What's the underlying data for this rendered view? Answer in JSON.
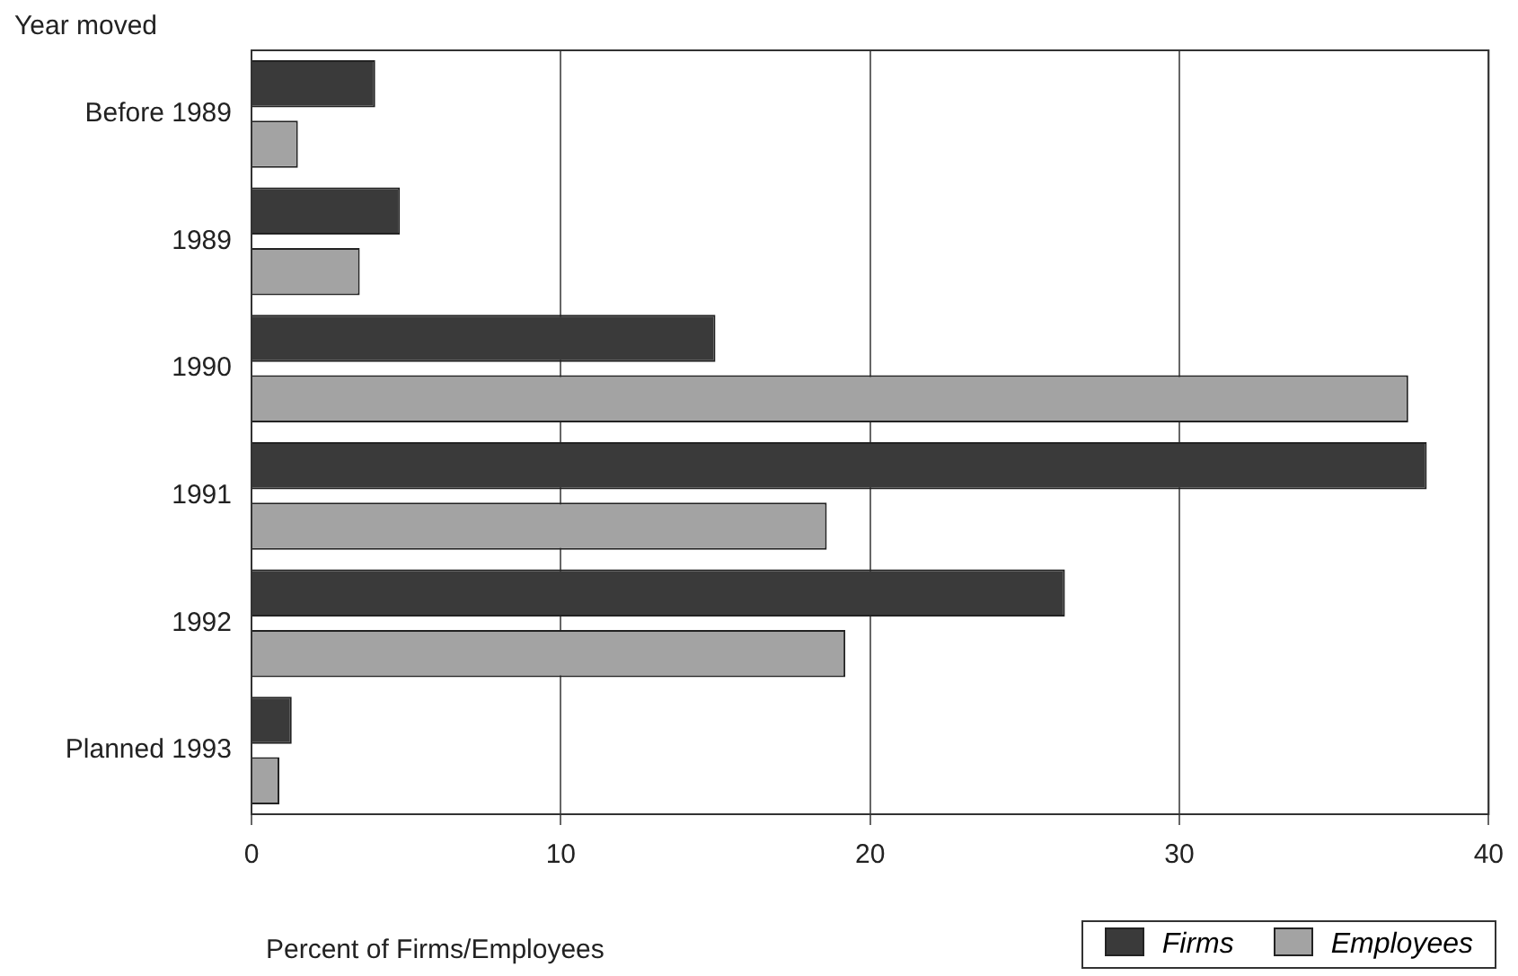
{
  "chart_data": {
    "type": "bar",
    "orientation": "horizontal",
    "ylabel": "Year moved",
    "xlabel": "Percent of Firms/Employees",
    "categories": [
      "Before 1989",
      "1989",
      "1990",
      "1991",
      "1992",
      "Planned 1993"
    ],
    "series": [
      {
        "name": "Firms",
        "color": "#3a3a3a",
        "values": [
          4.0,
          4.8,
          15.0,
          38.0,
          26.3,
          1.3
        ]
      },
      {
        "name": "Employees",
        "color": "#a3a3a3",
        "values": [
          1.5,
          3.5,
          37.4,
          18.6,
          19.2,
          0.9
        ]
      }
    ],
    "xlim": [
      0,
      40
    ],
    "xticks": [
      0,
      10,
      20,
      30,
      40
    ],
    "grid": "x",
    "legend": "bottom right"
  }
}
